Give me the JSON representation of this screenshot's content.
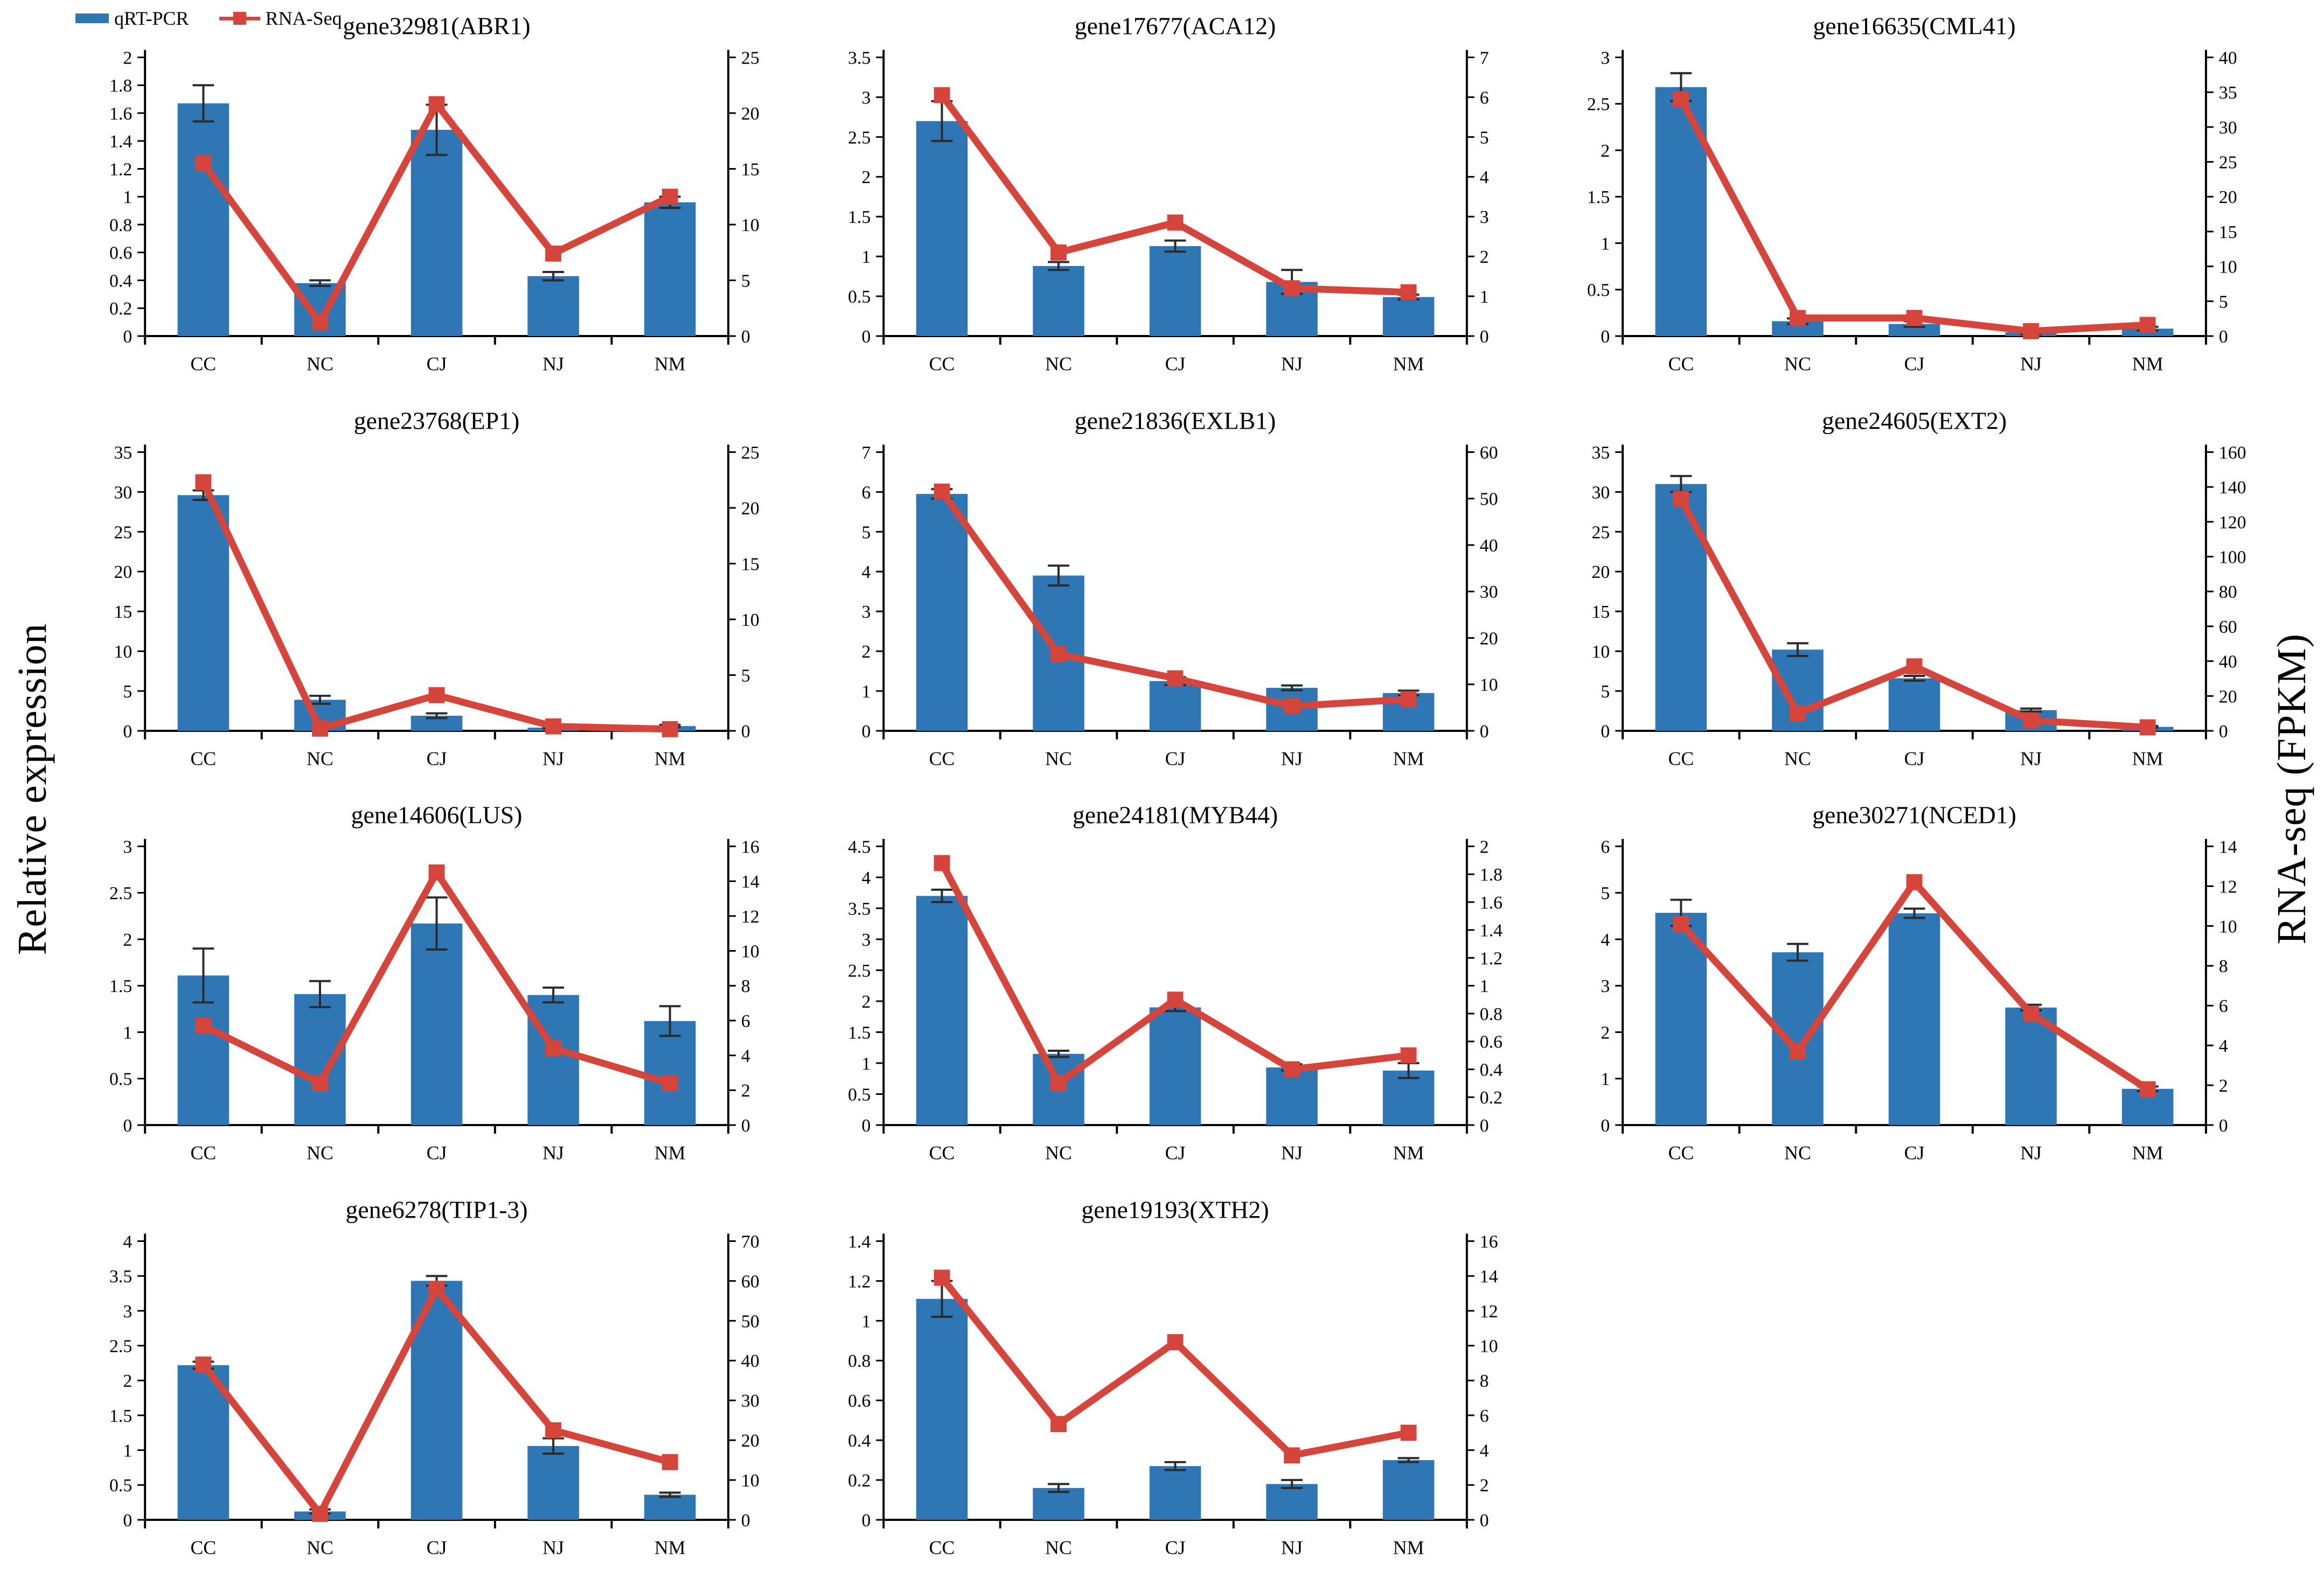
{
  "axis_labels": {
    "left": "Relative expression",
    "right": "RNA-seq (FPKM)"
  },
  "legend": {
    "position": "top-left",
    "items": [
      {
        "label": "qRT-PCR",
        "color": "#2f76b5",
        "swatch": "bar"
      },
      {
        "label": "RNA-Seq",
        "color": "#d6453c",
        "swatch": "line-square"
      }
    ]
  },
  "categories": [
    "CC",
    "NC",
    "CJ",
    "NJ",
    "NM"
  ],
  "colors": {
    "bar": "#2f76b5",
    "line": "#d6453c",
    "error_bar": "#2b2b2b",
    "axis": "#000000"
  },
  "chart_data": [
    {
      "type": "bar",
      "title": "gene32981(ABR1)",
      "categories": [
        "CC",
        "NC",
        "CJ",
        "NJ",
        "NM"
      ],
      "left_axis": {
        "min": 0,
        "max": 2,
        "step": 0.2
      },
      "right_axis": {
        "min": 0,
        "max": 25,
        "step": 5
      },
      "series": [
        {
          "name": "qRT-PCR",
          "type": "bar",
          "axis": "left",
          "values": [
            1.67,
            0.38,
            1.48,
            0.43,
            0.96
          ],
          "errors": [
            0.13,
            0.02,
            0.18,
            0.03,
            0.04
          ]
        },
        {
          "name": "RNA-Seq",
          "type": "line",
          "axis": "right",
          "values": [
            15.5,
            1.2,
            20.8,
            7.4,
            12.5
          ]
        }
      ]
    },
    {
      "type": "bar",
      "title": "gene17677(ACA12)",
      "categories": [
        "CC",
        "NC",
        "CJ",
        "NJ",
        "NM"
      ],
      "left_axis": {
        "min": 0,
        "max": 3.5,
        "step": 0.5
      },
      "right_axis": {
        "min": 0,
        "max": 7,
        "step": 1
      },
      "series": [
        {
          "name": "qRT-PCR",
          "type": "bar",
          "axis": "left",
          "values": [
            2.7,
            0.88,
            1.13,
            0.68,
            0.49
          ],
          "errors": [
            0.25,
            0.05,
            0.07,
            0.15,
            0.03
          ]
        },
        {
          "name": "RNA-Seq",
          "type": "line",
          "axis": "right",
          "values": [
            6.05,
            2.1,
            2.85,
            1.2,
            1.1
          ]
        }
      ]
    },
    {
      "type": "bar",
      "title": "gene16635(CML41)",
      "categories": [
        "CC",
        "NC",
        "CJ",
        "NJ",
        "NM"
      ],
      "left_axis": {
        "min": 0,
        "max": 3,
        "step": 0.5
      },
      "right_axis": {
        "min": 0,
        "max": 40,
        "step": 5
      },
      "series": [
        {
          "name": "qRT-PCR",
          "type": "bar",
          "axis": "left",
          "values": [
            2.68,
            0.16,
            0.13,
            0.04,
            0.08
          ],
          "errors": [
            0.15,
            0.03,
            0.03,
            0.02,
            0.02
          ]
        },
        {
          "name": "RNA-Seq",
          "type": "line",
          "axis": "right",
          "values": [
            34,
            2.6,
            2.6,
            0.7,
            1.6
          ]
        }
      ]
    },
    {
      "type": "bar",
      "title": "gene23768(EP1)",
      "categories": [
        "CC",
        "NC",
        "CJ",
        "NJ",
        "NM"
      ],
      "left_axis": {
        "min": 0,
        "max": 35,
        "step": 5
      },
      "right_axis": {
        "min": 0,
        "max": 25,
        "step": 5
      },
      "series": [
        {
          "name": "qRT-PCR",
          "type": "bar",
          "axis": "left",
          "values": [
            29.6,
            3.9,
            1.9,
            0.4,
            0.6
          ],
          "errors": [
            0.6,
            0.5,
            0.3,
            0.1,
            0.15
          ]
        },
        {
          "name": "RNA-Seq",
          "type": "line",
          "axis": "right",
          "values": [
            22.3,
            0.2,
            3.2,
            0.4,
            0.15
          ]
        }
      ]
    },
    {
      "type": "bar",
      "title": "gene21836(EXLB1)",
      "categories": [
        "CC",
        "NC",
        "CJ",
        "NJ",
        "NM"
      ],
      "left_axis": {
        "min": 0,
        "max": 7,
        "step": 1
      },
      "right_axis": {
        "min": 0,
        "max": 60,
        "step": 10
      },
      "series": [
        {
          "name": "qRT-PCR",
          "type": "bar",
          "axis": "left",
          "values": [
            5.95,
            3.9,
            1.25,
            1.08,
            0.95
          ],
          "errors": [
            0.12,
            0.25,
            0.1,
            0.06,
            0.06
          ]
        },
        {
          "name": "RNA-Seq",
          "type": "line",
          "axis": "right",
          "values": [
            51.5,
            16.5,
            11.3,
            5.3,
            6.8
          ]
        }
      ]
    },
    {
      "type": "bar",
      "title": "gene24605(EXT2)",
      "categories": [
        "CC",
        "NC",
        "CJ",
        "NJ",
        "NM"
      ],
      "left_axis": {
        "min": 0,
        "max": 35,
        "step": 5
      },
      "right_axis": {
        "min": 0,
        "max": 160,
        "step": 20
      },
      "series": [
        {
          "name": "qRT-PCR",
          "type": "bar",
          "axis": "left",
          "values": [
            31,
            10.2,
            6.6,
            2.6,
            0.5
          ],
          "errors": [
            1.0,
            0.8,
            0.3,
            0.2,
            0.1
          ]
        },
        {
          "name": "RNA-Seq",
          "type": "line",
          "axis": "right",
          "values": [
            133,
            10,
            37,
            6,
            2
          ]
        }
      ]
    },
    {
      "type": "bar",
      "title": "gene14606(LUS)",
      "categories": [
        "CC",
        "NC",
        "CJ",
        "NJ",
        "NM"
      ],
      "left_axis": {
        "min": 0,
        "max": 3,
        "step": 0.5
      },
      "right_axis": {
        "min": 0,
        "max": 16,
        "step": 2
      },
      "series": [
        {
          "name": "qRT-PCR",
          "type": "bar",
          "axis": "left",
          "values": [
            1.61,
            1.41,
            2.17,
            1.4,
            1.12
          ],
          "errors": [
            0.29,
            0.14,
            0.28,
            0.08,
            0.16
          ]
        },
        {
          "name": "RNA-Seq",
          "type": "line",
          "axis": "right",
          "values": [
            5.7,
            2.4,
            14.5,
            4.4,
            2.4
          ]
        }
      ]
    },
    {
      "type": "bar",
      "title": "gene24181(MYB44)",
      "categories": [
        "CC",
        "NC",
        "CJ",
        "NJ",
        "NM"
      ],
      "left_axis": {
        "min": 0,
        "max": 4.5,
        "step": 0.5
      },
      "right_axis": {
        "min": 0,
        "max": 2,
        "step": 0.2
      },
      "series": [
        {
          "name": "qRT-PCR",
          "type": "bar",
          "axis": "left",
          "values": [
            3.7,
            1.15,
            1.9,
            0.93,
            0.88
          ],
          "errors": [
            0.1,
            0.05,
            0.06,
            0.05,
            0.12
          ]
        },
        {
          "name": "RNA-Seq",
          "type": "line",
          "axis": "right",
          "values": [
            1.88,
            0.3,
            0.9,
            0.4,
            0.5
          ]
        }
      ]
    },
    {
      "type": "bar",
      "title": "gene30271(NCED1)",
      "categories": [
        "CC",
        "NC",
        "CJ",
        "NJ",
        "NM"
      ],
      "left_axis": {
        "min": 0,
        "max": 6,
        "step": 1
      },
      "right_axis": {
        "min": 0,
        "max": 14,
        "step": 2
      },
      "series": [
        {
          "name": "qRT-PCR",
          "type": "bar",
          "axis": "left",
          "values": [
            4.57,
            3.72,
            4.56,
            2.53,
            0.78
          ],
          "errors": [
            0.28,
            0.18,
            0.1,
            0.06,
            0.05
          ]
        },
        {
          "name": "RNA-Seq",
          "type": "line",
          "axis": "right",
          "values": [
            10.1,
            3.7,
            12.2,
            5.6,
            1.8
          ]
        }
      ]
    },
    {
      "type": "bar",
      "title": "gene6278(TIP1-3)",
      "categories": [
        "CC",
        "NC",
        "CJ",
        "NJ",
        "NM"
      ],
      "left_axis": {
        "min": 0,
        "max": 4,
        "step": 0.5
      },
      "right_axis": {
        "min": 0,
        "max": 70,
        "step": 10
      },
      "series": [
        {
          "name": "qRT-PCR",
          "type": "bar",
          "axis": "left",
          "values": [
            2.22,
            0.12,
            3.43,
            1.06,
            0.36
          ],
          "errors": [
            0.05,
            0.03,
            0.07,
            0.11,
            0.03
          ]
        },
        {
          "name": "RNA-Seq",
          "type": "line",
          "axis": "right",
          "values": [
            39,
            1.5,
            58,
            22.5,
            14.5
          ]
        }
      ]
    },
    {
      "type": "bar",
      "title": "gene19193(XTH2)",
      "categories": [
        "CC",
        "NC",
        "CJ",
        "NJ",
        "NM"
      ],
      "left_axis": {
        "min": 0,
        "max": 1.4,
        "step": 0.2
      },
      "right_axis": {
        "min": 0,
        "max": 16,
        "step": 2
      },
      "series": [
        {
          "name": "qRT-PCR",
          "type": "bar",
          "axis": "left",
          "values": [
            1.11,
            0.16,
            0.27,
            0.18,
            0.3
          ],
          "errors": [
            0.09,
            0.02,
            0.02,
            0.02,
            0.01
          ]
        },
        {
          "name": "RNA-Seq",
          "type": "line",
          "axis": "right",
          "values": [
            13.9,
            5.5,
            10.2,
            3.7,
            5
          ]
        }
      ]
    }
  ]
}
